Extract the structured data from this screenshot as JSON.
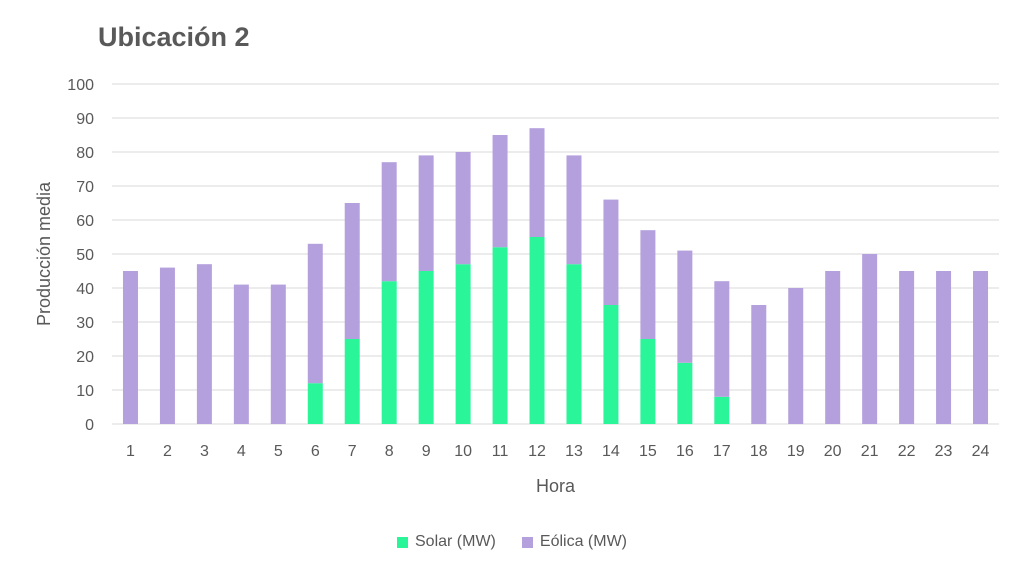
{
  "chart_data": {
    "type": "bar",
    "stacked": true,
    "title": "Ubicación 2",
    "xlabel": "Hora",
    "ylabel": "Producción media",
    "ylim": [
      0,
      100
    ],
    "yticks": [
      0,
      10,
      20,
      30,
      40,
      50,
      60,
      70,
      80,
      90,
      100
    ],
    "grid": true,
    "legend_position": "bottom",
    "categories": [
      "1",
      "2",
      "3",
      "4",
      "5",
      "6",
      "7",
      "8",
      "9",
      "10",
      "11",
      "12",
      "13",
      "14",
      "15",
      "16",
      "17",
      "18",
      "19",
      "20",
      "21",
      "22",
      "23",
      "24"
    ],
    "series": [
      {
        "name": "Solar (MW)",
        "color": "#2af598",
        "values": [
          0,
          0,
          0,
          0,
          0,
          12,
          25,
          42,
          45,
          47,
          52,
          55,
          47,
          35,
          25,
          18,
          8,
          0,
          0,
          0,
          0,
          0,
          0,
          0
        ]
      },
      {
        "name": "Eólica (MW)",
        "color": "#b4a0dc",
        "values": [
          45,
          46,
          47,
          41,
          41,
          41,
          40,
          35,
          34,
          33,
          33,
          32,
          32,
          31,
          32,
          33,
          34,
          35,
          40,
          45,
          50,
          45,
          45,
          45
        ]
      }
    ]
  }
}
